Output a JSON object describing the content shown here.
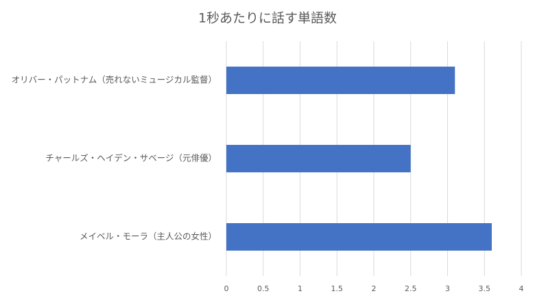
{
  "chart_data": {
    "type": "barh",
    "title": "1秒あたりに話す単語数",
    "categories": [
      "オリバー・パットナム（売れないミュージカル監督）",
      "チャールズ・ヘイデン・サベージ（元俳優）",
      "メイベル・モーラ（主人公の女性）"
    ],
    "values": [
      3.1,
      2.5,
      3.6
    ],
    "color": "#4472c4",
    "xlim": [
      0,
      4
    ],
    "xticks": [
      0,
      0.5,
      1,
      1.5,
      2,
      2.5,
      3,
      3.5,
      4
    ],
    "grid": true
  }
}
